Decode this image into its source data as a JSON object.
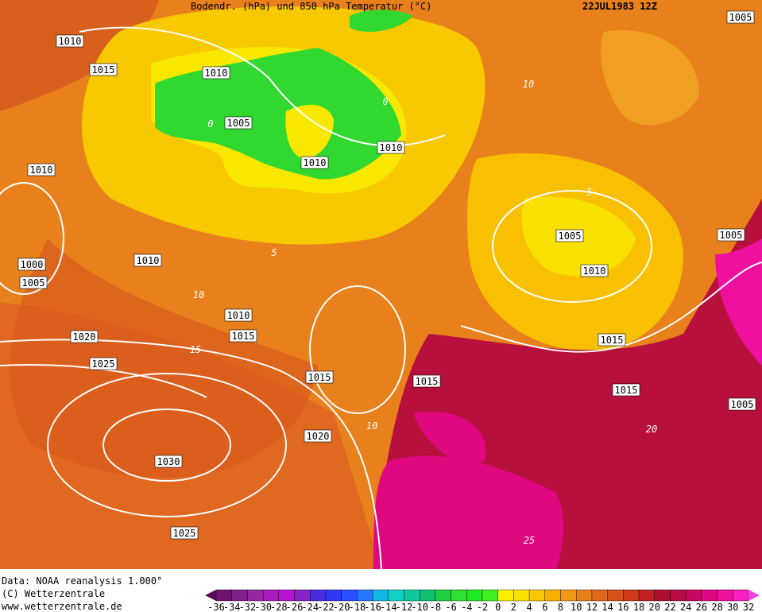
{
  "header": {
    "title": "Bodendr. (hPa) und 850 hPa Temperatur (°C)",
    "date": "22JUL1983 12Z"
  },
  "isobar_labels": [
    1005,
    1010,
    1015,
    1010,
    1005,
    1010,
    1010,
    1010,
    1005,
    1005,
    1010,
    1000,
    1010,
    1005,
    1010,
    1015,
    1020,
    1015,
    1025,
    1015,
    1015,
    1015,
    1005,
    1020,
    1030,
    1025
  ],
  "temperature_labels": [
    0,
    0,
    10,
    5,
    5,
    10,
    15,
    10,
    20,
    25
  ],
  "footer": {
    "source": "Data: NOAA reanalysis 1.000°",
    "copyright": "(C) Wetterzentrale",
    "url": "www.wetterzentrale.de"
  },
  "colorbar": {
    "ticks": [
      -36,
      -34,
      -32,
      -30,
      -28,
      -26,
      -24,
      -22,
      -20,
      -18,
      -16,
      -14,
      -12,
      -10,
      -8,
      -6,
      -4,
      -2,
      0,
      2,
      4,
      6,
      8,
      10,
      12,
      14,
      16,
      18,
      20,
      22,
      24,
      26,
      28,
      30,
      32
    ],
    "colors": [
      "#5a0a5a",
      "#6e1470",
      "#80208a",
      "#9628a4",
      "#aa1cc0",
      "#b814d4",
      "#8a20c8",
      "#4a2ce0",
      "#3038f0",
      "#2850ff",
      "#2878ff",
      "#10b8e8",
      "#10d0c8",
      "#10c8a0",
      "#10c070",
      "#20d040",
      "#30e030",
      "#20e820",
      "#40f020",
      "#f8f000",
      "#f8e000",
      "#f8c800",
      "#f8b000",
      "#f09818",
      "#e88018",
      "#e06818",
      "#d85018",
      "#d03818",
      "#c02020",
      "#b01030",
      "#b80c48",
      "#c80860",
      "#e00880",
      "#f010a0",
      "#f820c0",
      "#f840e0"
    ]
  }
}
